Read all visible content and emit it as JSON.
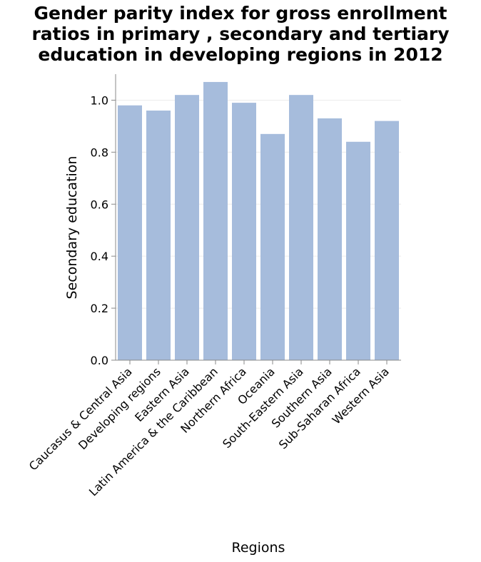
{
  "chart_data": {
    "type": "bar",
    "title_lines": [
      "Gender parity index for gross enrollment",
      "ratios in primary , secondary and tertiary",
      "education in developing regions in 2012"
    ],
    "xlabel": "Regions",
    "ylabel": "Secondary education",
    "categories": [
      "Caucasus & Central Asia",
      "Developing regions",
      "Eastern Asia",
      "Latin America & the Caribbean",
      "Northern Africa",
      "Oceania",
      "South-Eastern Asia",
      "Southern Asia",
      "Sub-Saharan Africa",
      "Western Asia"
    ],
    "values": [
      0.98,
      0.96,
      1.02,
      1.07,
      0.99,
      0.87,
      1.02,
      0.93,
      0.84,
      0.92
    ],
    "ylim": [
      0,
      1.1
    ],
    "yticks": [
      "0.0",
      "0.2",
      "0.4",
      "0.6",
      "0.8",
      "1.0"
    ],
    "grid": true,
    "bar_color": "#a6bcdc"
  }
}
